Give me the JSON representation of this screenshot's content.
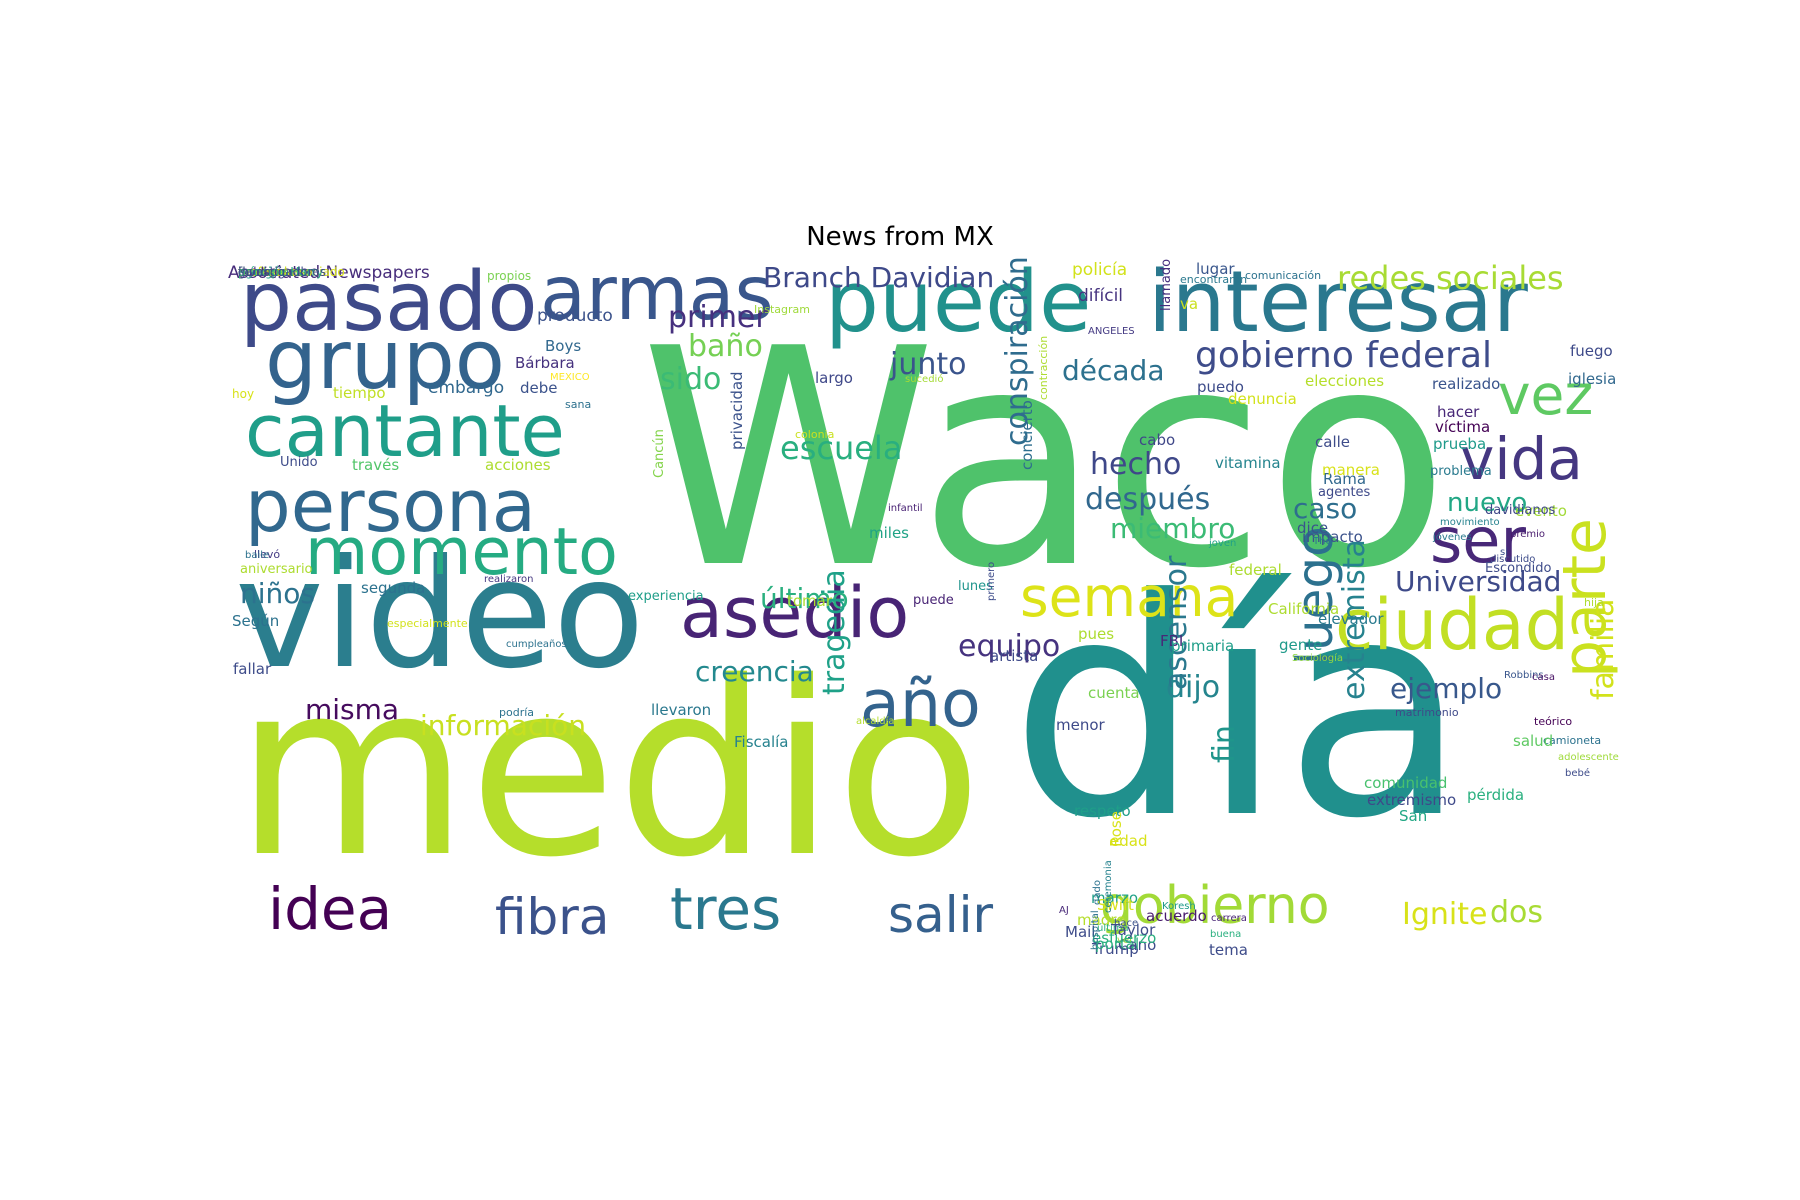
{
  "title": "News from MX",
  "words": [
    {
      "text": "Waco",
      "color": "#4fc26b"
    },
    {
      "text": "día",
      "color": "#20908d"
    },
    {
      "text": "medio",
      "color": "#b5de2b"
    },
    {
      "text": "video",
      "color": "#2b7e8e"
    },
    {
      "text": "interesar",
      "color": "#2a788e"
    },
    {
      "text": "puede",
      "color": "#21918c"
    },
    {
      "text": "pasado",
      "color": "#3e4a89"
    },
    {
      "text": "grupo",
      "color": "#33638d"
    },
    {
      "text": "armas",
      "color": "#39568c"
    },
    {
      "text": "cantante",
      "color": "#1f9e89"
    },
    {
      "text": "persona",
      "color": "#31688e"
    },
    {
      "text": "momento",
      "color": "#25ab82"
    },
    {
      "text": "asedio",
      "color": "#482475"
    },
    {
      "text": "vida",
      "color": "#453781"
    },
    {
      "text": "vez",
      "color": "#5ec962"
    },
    {
      "text": "ciudad",
      "color": "#c2df23"
    },
    {
      "text": "semana",
      "color": "#dde318"
    },
    {
      "text": "ser",
      "color": "#482878"
    },
    {
      "text": "parte",
      "color": "#cae11f"
    },
    {
      "text": "año",
      "color": "#33638d"
    },
    {
      "text": "idea",
      "color": "#440154"
    },
    {
      "text": "tres",
      "color": "#2a788e"
    },
    {
      "text": "fibra",
      "color": "#3b528b"
    },
    {
      "text": "salir",
      "color": "#35608d"
    },
    {
      "text": "gobierno",
      "color": "#a2da37"
    },
    {
      "text": "luego",
      "color": "#2c718e"
    },
    {
      "text": "gobierno federal",
      "color": "#3e4c8a"
    },
    {
      "text": "redes sociales",
      "color": "#a8db34"
    },
    {
      "text": "Branch Davidian",
      "color": "#3e4989"
    },
    {
      "text": "década",
      "color": "#2d718e"
    },
    {
      "text": "hecho",
      "color": "#3f4889"
    },
    {
      "text": "después",
      "color": "#31688e"
    },
    {
      "text": "miembro",
      "color": "#3bbb75"
    },
    {
      "text": "caso",
      "color": "#2e6e8e"
    },
    {
      "text": "nuevo",
      "color": "#22a785"
    },
    {
      "text": "Universidad",
      "color": "#3e4a89"
    },
    {
      "text": "escuela",
      "color": "#29af7f"
    },
    {
      "text": "junto",
      "color": "#3a548c"
    },
    {
      "text": "primer",
      "color": "#46307e"
    },
    {
      "text": "baño",
      "color": "#75d054"
    },
    {
      "text": "sido",
      "color": "#3bbb75"
    },
    {
      "text": "conspiración",
      "color": "#2f6c8e"
    },
    {
      "text": "equipo",
      "color": "#46337f"
    },
    {
      "text": "último",
      "color": "#2ab07f"
    },
    {
      "text": "niños",
      "color": "#2c728e"
    },
    {
      "text": "creencia",
      "color": "#23898e"
    },
    {
      "text": "información",
      "color": "#c8e020"
    },
    {
      "text": "misma",
      "color": "#460b5e"
    },
    {
      "text": "dijo",
      "color": "#25858e"
    },
    {
      "text": "ejemplo",
      "color": "#38588c"
    },
    {
      "text": "familia",
      "color": "#d2e21b"
    },
    {
      "text": "extremista",
      "color": "#26828e"
    },
    {
      "text": "ascensor",
      "color": "#2a788e"
    },
    {
      "text": "fin",
      "color": "#1f958b"
    },
    {
      "text": "tragedia",
      "color": "#1fa188"
    },
    {
      "text": "Ignite",
      "color": "#d8e219"
    },
    {
      "text": "dos",
      "color": "#a8db34"
    },
    {
      "text": "Associated Newspapers",
      "color": "#472d7b"
    },
    {
      "text": "propios",
      "color": "#7ad151"
    },
    {
      "text": "producto",
      "color": "#3b528b"
    },
    {
      "text": "Instagram",
      "color": "#9fda3a"
    },
    {
      "text": "policía",
      "color": "#d2e21b"
    },
    {
      "text": "difícil",
      "color": "#46337f"
    },
    {
      "text": "lugar",
      "color": "#39568c"
    },
    {
      "text": "encontraron",
      "color": "#2a788e"
    },
    {
      "text": "comunicación",
      "color": "#2c728e"
    },
    {
      "text": "va",
      "color": "#cae11f"
    },
    {
      "text": "llamado",
      "color": "#462f7e"
    },
    {
      "text": "ANGELES",
      "color": "#443a83"
    },
    {
      "text": "fuego",
      "color": "#3e4a89"
    },
    {
      "text": "iglesia",
      "color": "#31688e"
    },
    {
      "text": "Boys",
      "color": "#31688e"
    },
    {
      "text": "Bárbara",
      "color": "#46327e"
    },
    {
      "text": "MEXICO",
      "color": "#fde725"
    },
    {
      "text": "embargo",
      "color": "#31688e"
    },
    {
      "text": "debe",
      "color": "#3b528b"
    },
    {
      "text": "sana",
      "color": "#2d718e"
    },
    {
      "text": "tiempo",
      "color": "#c0df25"
    },
    {
      "text": "hoy",
      "color": "#d8e219"
    },
    {
      "text": "Unido",
      "color": "#3e4c8a"
    },
    {
      "text": "través",
      "color": "#52c569"
    },
    {
      "text": "acciones",
      "color": "#addc30"
    },
    {
      "text": "Cancún",
      "color": "#84d44b"
    },
    {
      "text": "privacidad",
      "color": "#3b528b"
    },
    {
      "text": "colonia",
      "color": "#cae11f"
    },
    {
      "text": "largo",
      "color": "#3f4889"
    },
    {
      "text": "sucedió",
      "color": "#a5db36"
    },
    {
      "text": "concierto",
      "color": "#2e6e8e"
    },
    {
      "text": "contracción",
      "color": "#addc30"
    },
    {
      "text": "puedo",
      "color": "#3e4c8a"
    },
    {
      "text": "elecciones",
      "color": "#b5de2b"
    },
    {
      "text": "denuncia",
      "color": "#d2e21b"
    },
    {
      "text": "cabo",
      "color": "#3f4788"
    },
    {
      "text": "vitamina",
      "color": "#25848e"
    },
    {
      "text": "calle",
      "color": "#3e4c8a"
    },
    {
      "text": "Rama",
      "color": "#31688e"
    },
    {
      "text": "agentes",
      "color": "#3e4989"
    },
    {
      "text": "manera",
      "color": "#d8e219"
    },
    {
      "text": "realizado",
      "color": "#3a548c"
    },
    {
      "text": "hacer",
      "color": "#482878"
    },
    {
      "text": "víctima",
      "color": "#440154"
    },
    {
      "text": "prueba",
      "color": "#1f9a8a"
    },
    {
      "text": "problema",
      "color": "#297a8e"
    },
    {
      "text": "movimiento",
      "color": "#26828e"
    },
    {
      "text": "jóvenes",
      "color": "#297a8e"
    },
    {
      "text": "infantil",
      "color": "#482173"
    },
    {
      "text": "miles",
      "color": "#20a386"
    },
    {
      "text": "dice",
      "color": "#3a548c"
    },
    {
      "text": "impacto",
      "color": "#3b528b"
    },
    {
      "text": "The",
      "color": "#297a8e"
    },
    {
      "text": "joven",
      "color": "#20a386"
    },
    {
      "text": "federal",
      "color": "#addc30"
    },
    {
      "text": "evento",
      "color": "#a2da37"
    },
    {
      "text": "davidianos",
      "color": "#3f4788"
    },
    {
      "text": "premio",
      "color": "#481b6d"
    },
    {
      "text": "si",
      "color": "#3b528b"
    },
    {
      "text": "Escondido",
      "color": "#3e4c8a"
    },
    {
      "text": "discutido",
      "color": "#3e4c8a"
    },
    {
      "text": "llevó",
      "color": "#443a83"
    },
    {
      "text": "aniversario",
      "color": "#addc30"
    },
    {
      "text": "baile",
      "color": "#2c728e"
    },
    {
      "text": "segunda",
      "color": "#2c728e"
    },
    {
      "text": "realizaron",
      "color": "#453781"
    },
    {
      "text": "experiencia",
      "color": "#1f9e89"
    },
    {
      "text": "tomar",
      "color": "#addc30"
    },
    {
      "text": "puede",
      "color": "#482475"
    },
    {
      "text": "lunes",
      "color": "#1f948c"
    },
    {
      "text": "California",
      "color": "#addc30"
    },
    {
      "text": "hija",
      "color": "#addc30"
    },
    {
      "text": "primero",
      "color": "#3e4c8a"
    },
    {
      "text": "pues",
      "color": "#addc30"
    },
    {
      "text": "elevador",
      "color": "#297a8e"
    },
    {
      "text": "FBI",
      "color": "#482878"
    },
    {
      "text": "primaria",
      "color": "#1f9e89"
    },
    {
      "text": "gente",
      "color": "#1f9a8a"
    },
    {
      "text": "Sociología",
      "color": "#90d743"
    },
    {
      "text": "Según",
      "color": "#2c728e"
    },
    {
      "text": "especialmente",
      "color": "#d2e21b"
    },
    {
      "text": "artista",
      "color": "#3e4989"
    },
    {
      "text": "Robbins",
      "color": "#39568c"
    },
    {
      "text": "casa",
      "color": "#471164"
    },
    {
      "text": "cuenta",
      "color": "#7ad151"
    },
    {
      "text": "fallar",
      "color": "#3e4c8a"
    },
    {
      "text": "cumpleaños",
      "color": "#2c728e"
    },
    {
      "text": "llevaron",
      "color": "#2a788e"
    },
    {
      "text": "podría",
      "color": "#2c728e"
    },
    {
      "text": "alcaldía",
      "color": "#b5de2b"
    },
    {
      "text": "Fiscalía",
      "color": "#26828e"
    },
    {
      "text": "menor",
      "color": "#3e4a89"
    },
    {
      "text": "teórico",
      "color": "#440154"
    },
    {
      "text": "matrimonio",
      "color": "#3e4989"
    },
    {
      "text": "camioneta",
      "color": "#2c728e"
    },
    {
      "text": "salud",
      "color": "#5ec962"
    },
    {
      "text": "adolescente",
      "color": "#9fda3a"
    },
    {
      "text": "bebé",
      "color": "#3e4c8a"
    },
    {
      "text": "comunidad",
      "color": "#48c16e"
    },
    {
      "text": "extremismo",
      "color": "#3e4989"
    },
    {
      "text": "San",
      "color": "#22a785"
    },
    {
      "text": "pérdida",
      "color": "#2ab07f"
    },
    {
      "text": "respeto",
      "color": "#1f9e89"
    },
    {
      "text": "Rose",
      "color": "#d8e219"
    },
    {
      "text": "edad",
      "color": "#d8e219"
    },
    {
      "text": "marzo",
      "color": "#1fa188"
    },
    {
      "text": "Swift",
      "color": "#d8e219"
    },
    {
      "text": "AJ",
      "color": "#482878"
    },
    {
      "text": "madre",
      "color": "#b5de2b"
    },
    {
      "text": "última",
      "color": "#2ab07f"
    },
    {
      "text": "hace",
      "color": "#3b528b"
    },
    {
      "text": "Mail",
      "color": "#3e4c8a"
    },
    {
      "text": "Trump",
      "color": "#3e4c8a"
    },
    {
      "text": "Koresh",
      "color": "#1f9a8a"
    },
    {
      "text": "carrera",
      "color": "#482475"
    },
    {
      "text": "acuerdo",
      "color": "#481b6d"
    },
    {
      "text": "portal",
      "color": "#2ab07f"
    },
    {
      "text": "Cano",
      "color": "#3e4c8a"
    },
    {
      "text": "tema",
      "color": "#3e4c8a"
    },
    {
      "text": "buena",
      "color": "#2ab07f"
    },
    {
      "text": "ver",
      "color": "#9fda3a"
    },
    {
      "text": "dado",
      "color": "#2c728e"
    },
    {
      "text": "esfuerzo",
      "color": "#2ab07f"
    },
    {
      "text": "hospital",
      "color": "#2c728e"
    },
    {
      "text": "Taylor",
      "color": "#3e4c8a"
    },
    {
      "text": "ceremonia",
      "color": "#26828e"
    },
    {
      "text": "involucrado",
      "color": "#2c728e"
    },
    {
      "text": "permiso",
      "color": "#26828e"
    },
    {
      "text": "gran",
      "color": "#3e4c8a"
    },
    {
      "text": "fuerte",
      "color": "#d2e21b"
    },
    {
      "text": "agregó",
      "color": "#1fa188"
    },
    {
      "text": "incendio",
      "color": "#2ab07f"
    },
    {
      "text": "famoso",
      "color": "#3e4c8a"
    },
    {
      "text": "creo",
      "color": "#3e4c8a"
    },
    {
      "text": "demanda",
      "color": "#cae11f"
    },
    {
      "text": "comunicado",
      "color": "#3e4a89"
    },
    {
      "text": "dentro",
      "color": "#3e4a89"
    },
    {
      "text": "publicó",
      "color": "#482878"
    },
    {
      "text": "decir",
      "color": "#3b528b"
    },
    {
      "text": "profesor asociado",
      "color": "#d8e219"
    },
    {
      "text": "príncipe Harry",
      "color": "#2ab07f"
    },
    {
      "text": "investigadores",
      "color": "#3e4a89"
    }
  ]
}
